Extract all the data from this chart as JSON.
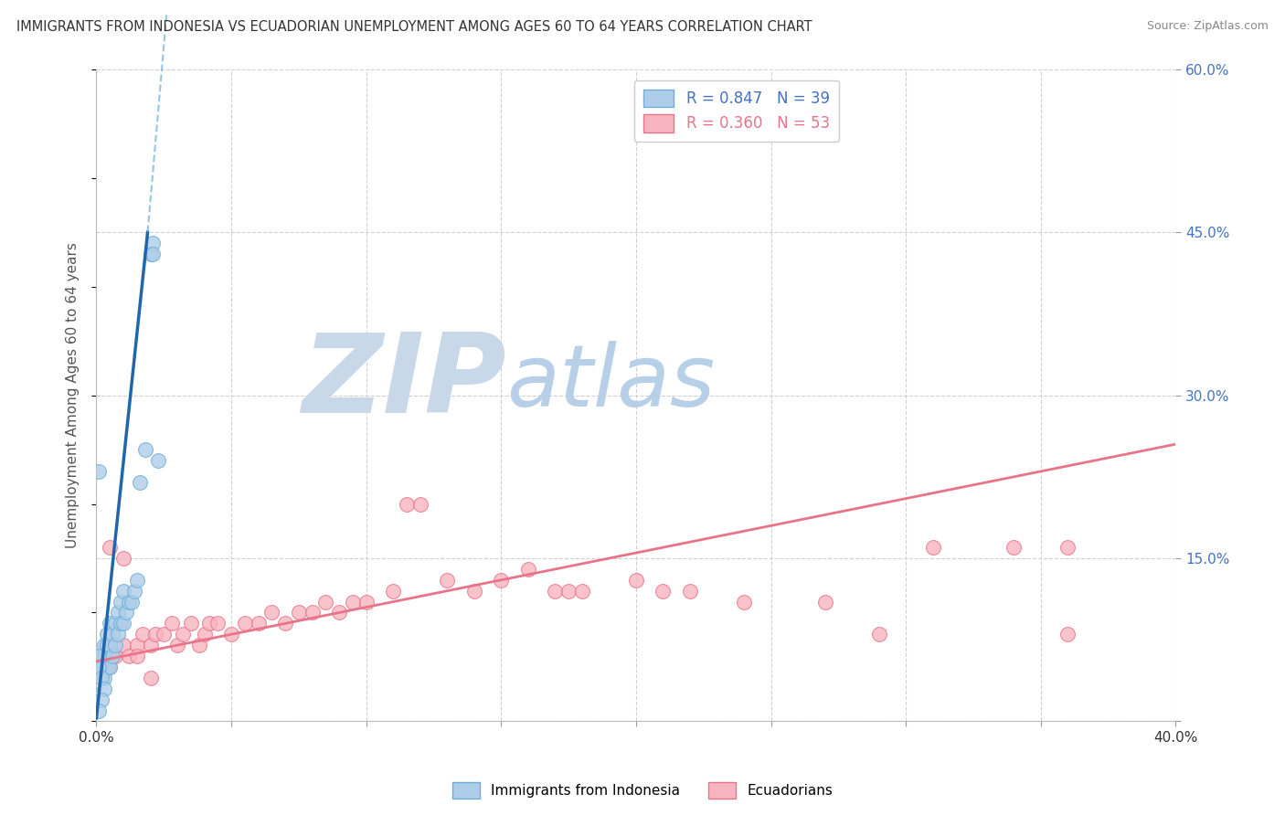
{
  "title": "IMMIGRANTS FROM INDONESIA VS ECUADORIAN UNEMPLOYMENT AMONG AGES 60 TO 64 YEARS CORRELATION CHART",
  "source": "Source: ZipAtlas.com",
  "ylabel": "Unemployment Among Ages 60 to 64 years",
  "xlim": [
    0.0,
    0.4
  ],
  "ylim": [
    0.0,
    0.6
  ],
  "xticks": [
    0.0,
    0.05,
    0.1,
    0.15,
    0.2,
    0.25,
    0.3,
    0.35,
    0.4
  ],
  "xticklabels": [
    "0.0%",
    "",
    "",
    "",
    "",
    "",
    "",
    "",
    "40.0%"
  ],
  "yticks_right": [
    0.0,
    0.15,
    0.3,
    0.45,
    0.6
  ],
  "yticklabels_right": [
    "",
    "15.0%",
    "30.0%",
    "45.0%",
    "60.0%"
  ],
  "indonesia_scatter": {
    "face_color": "#aecde8",
    "edge_color": "#6baed6",
    "x": [
      0.002,
      0.002,
      0.003,
      0.003,
      0.003,
      0.004,
      0.004,
      0.004,
      0.005,
      0.005,
      0.005,
      0.006,
      0.006,
      0.007,
      0.007,
      0.008,
      0.008,
      0.009,
      0.009,
      0.01,
      0.01,
      0.011,
      0.012,
      0.013,
      0.014,
      0.015,
      0.016,
      0.018,
      0.02,
      0.021,
      0.021,
      0.023,
      0.001,
      0.001,
      0.001,
      0.002,
      0.003,
      0.002,
      0.001
    ],
    "y": [
      0.05,
      0.06,
      0.04,
      0.06,
      0.07,
      0.05,
      0.07,
      0.08,
      0.05,
      0.07,
      0.09,
      0.06,
      0.08,
      0.07,
      0.09,
      0.08,
      0.1,
      0.09,
      0.11,
      0.09,
      0.12,
      0.1,
      0.11,
      0.11,
      0.12,
      0.13,
      0.22,
      0.25,
      0.43,
      0.44,
      0.43,
      0.24,
      0.23,
      0.06,
      0.05,
      0.04,
      0.03,
      0.02,
      0.01
    ]
  },
  "ecuador_scatter": {
    "face_color": "#f8b4c0",
    "edge_color": "#e8748a",
    "x": [
      0.003,
      0.005,
      0.007,
      0.01,
      0.012,
      0.015,
      0.017,
      0.02,
      0.022,
      0.025,
      0.028,
      0.03,
      0.032,
      0.035,
      0.038,
      0.04,
      0.042,
      0.045,
      0.05,
      0.055,
      0.06,
      0.065,
      0.07,
      0.075,
      0.08,
      0.085,
      0.09,
      0.095,
      0.1,
      0.11,
      0.115,
      0.12,
      0.13,
      0.14,
      0.15,
      0.16,
      0.17,
      0.175,
      0.18,
      0.2,
      0.21,
      0.22,
      0.24,
      0.27,
      0.29,
      0.31,
      0.34,
      0.36,
      0.36,
      0.005,
      0.01,
      0.015,
      0.02
    ],
    "y": [
      0.06,
      0.05,
      0.06,
      0.07,
      0.06,
      0.07,
      0.08,
      0.07,
      0.08,
      0.08,
      0.09,
      0.07,
      0.08,
      0.09,
      0.07,
      0.08,
      0.09,
      0.09,
      0.08,
      0.09,
      0.09,
      0.1,
      0.09,
      0.1,
      0.1,
      0.11,
      0.1,
      0.11,
      0.11,
      0.12,
      0.2,
      0.2,
      0.13,
      0.12,
      0.13,
      0.14,
      0.12,
      0.12,
      0.12,
      0.13,
      0.12,
      0.12,
      0.11,
      0.11,
      0.08,
      0.16,
      0.16,
      0.08,
      0.16,
      0.16,
      0.15,
      0.06,
      0.04
    ]
  },
  "indonesia_line": {
    "color": "#2166ac",
    "x": [
      0.0,
      0.019
    ],
    "y": [
      0.003,
      0.45
    ]
  },
  "indonesia_dash": {
    "color": "#6baed6",
    "x": [
      0.019,
      0.026
    ],
    "y": [
      0.45,
      0.65
    ]
  },
  "ecuador_line": {
    "color": "#e8748a",
    "x": [
      0.0,
      0.4
    ],
    "y": [
      0.055,
      0.255
    ]
  },
  "watermark_ZIP_color": "#c8d8e8",
  "watermark_atlas_color": "#b8cfe8",
  "background_color": "#ffffff",
  "grid_color": "#d0d0d0"
}
